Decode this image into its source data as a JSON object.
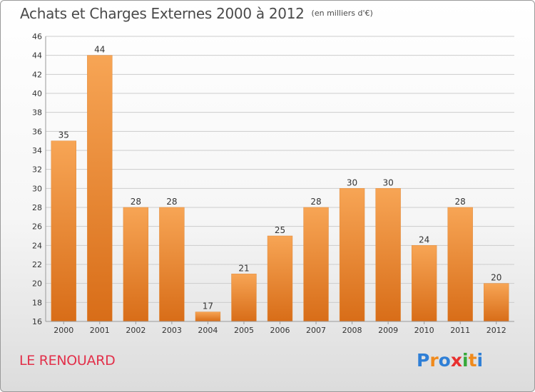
{
  "header": {
    "title": "Achats et Charges Externes 2000 à 2012",
    "subtitle": "(en milliers d'€)"
  },
  "footer": {
    "commune": "LE RENOUARD",
    "brand": "Proxiti",
    "brand_colors": [
      "#2f7fd6",
      "#f08a1c",
      "#2f7fd6",
      "#e8302f",
      "#37a93a",
      "#f08a1c",
      "#2f7fd6"
    ]
  },
  "colors": {
    "bar_light": "#f7a555",
    "bar_dark": "#d86d18",
    "axis_text": "#333333",
    "grid": "#cccccc"
  },
  "chart_data": {
    "type": "bar",
    "title": "Achats et Charges Externes 2000 à 2012",
    "categories": [
      "2000",
      "2001",
      "2002",
      "2003",
      "2004",
      "2005",
      "2006",
      "2007",
      "2008",
      "2009",
      "2010",
      "2011",
      "2012"
    ],
    "values": [
      35,
      44,
      28,
      28,
      17,
      21,
      25,
      28,
      30,
      30,
      24,
      28,
      20
    ],
    "data_labels": [
      "35",
      "44",
      "28",
      "28",
      "17",
      "21",
      "25",
      "28",
      "30",
      "30",
      "24",
      "28",
      "20"
    ],
    "yticks": [
      16,
      18,
      20,
      22,
      24,
      26,
      28,
      30,
      32,
      34,
      36,
      38,
      40,
      42,
      44,
      46
    ],
    "ylim": [
      16,
      46
    ],
    "grid": true,
    "legend": "none"
  }
}
